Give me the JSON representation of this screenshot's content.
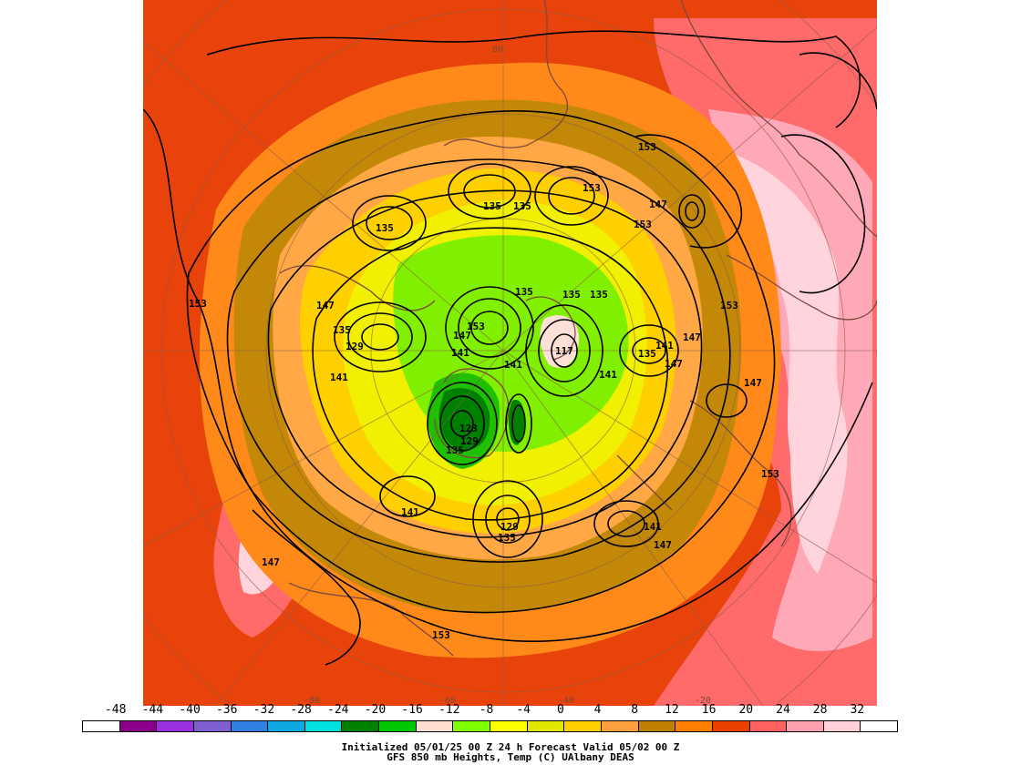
{
  "map": {
    "colors": {
      "background_band": "#e8430a",
      "coastline": "#7b4a3c",
      "contour": "#000000"
    },
    "contour_labels": [
      {
        "text": "153",
        "key": "w1"
      },
      {
        "text": "147",
        "key": "w2"
      },
      {
        "text": "135",
        "key": "w3"
      },
      {
        "text": "129",
        "key": "w4"
      },
      {
        "text": "141",
        "key": "w5"
      },
      {
        "text": "135",
        "key": "n1"
      },
      {
        "text": "135",
        "key": "n2"
      },
      {
        "text": "153",
        "key": "n3"
      },
      {
        "text": "135",
        "key": "n4"
      },
      {
        "text": "153",
        "key": "ne1"
      },
      {
        "text": "147",
        "key": "ne2"
      },
      {
        "text": "153",
        "key": "ne3"
      },
      {
        "text": "135",
        "key": "c1"
      },
      {
        "text": "135",
        "key": "c2"
      },
      {
        "text": "153",
        "key": "c3"
      },
      {
        "text": "147",
        "key": "c4"
      },
      {
        "text": "141",
        "key": "c5"
      },
      {
        "text": "141",
        "key": "c6"
      },
      {
        "text": "135",
        "key": "c7"
      },
      {
        "text": "117",
        "key": "c8"
      },
      {
        "text": "135",
        "key": "e1"
      },
      {
        "text": "141",
        "key": "e2"
      },
      {
        "text": "147",
        "key": "e3"
      },
      {
        "text": "153",
        "key": "e4"
      },
      {
        "text": "147",
        "key": "e5"
      },
      {
        "text": "147",
        "key": "e6"
      },
      {
        "text": "141",
        "key": "e7"
      },
      {
        "text": "123",
        "key": "s1"
      },
      {
        "text": "129",
        "key": "s2"
      },
      {
        "text": "135",
        "key": "s3"
      },
      {
        "text": "141",
        "key": "s4"
      },
      {
        "text": "129",
        "key": "s5"
      },
      {
        "text": "135",
        "key": "s6"
      },
      {
        "text": "141",
        "key": "s7"
      },
      {
        "text": "147",
        "key": "s8"
      },
      {
        "text": "153",
        "key": "s9"
      },
      {
        "text": "147",
        "key": "sw1"
      },
      {
        "text": "153",
        "key": "se1"
      }
    ],
    "lat_labels": [
      "80",
      "-80",
      "-60",
      "-40",
      "-20"
    ]
  },
  "colorbar": {
    "ticks": [
      "-48",
      "-44",
      "-40",
      "-36",
      "-32",
      "-28",
      "-24",
      "-20",
      "-16",
      "-12",
      "-8",
      "-4",
      "0",
      "4",
      "8",
      "12",
      "16",
      "20",
      "24",
      "28",
      "32"
    ],
    "swatches": [
      "#ffffff",
      "#8b008b",
      "#9b30e0",
      "#8060d0",
      "#2f80e0",
      "#10a8e0",
      "#00e0e0",
      "#008000",
      "#00c800",
      "#ffe0d0",
      "#80ff00",
      "#ffff00",
      "#e0e800",
      "#ffd000",
      "#ffa040",
      "#c08000",
      "#ff8000",
      "#e84000",
      "#ff6060",
      "#ffa0b0",
      "#ffd0d8",
      "#ffffff"
    ]
  },
  "caption": {
    "line1": "Initialized 05/01/25 00 Z  24 h Forecast Valid 05/02 00 Z",
    "line2": "GFS 850 mb  Heights, Temp (C)      UAlbany DEAS"
  }
}
